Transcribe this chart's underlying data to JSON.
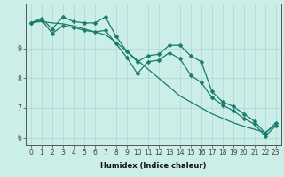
{
  "title": "",
  "xlabel": "Humidex (Indice chaleur)",
  "line_color": "#1a7a6e",
  "bg_color": "#cceee8",
  "grid_color": "#aad8d0",
  "x": [
    0,
    1,
    2,
    3,
    4,
    5,
    6,
    7,
    8,
    9,
    10,
    11,
    12,
    13,
    14,
    15,
    16,
    17,
    18,
    19,
    20,
    21,
    22,
    23
  ],
  "line1": [
    9.85,
    10.0,
    9.65,
    10.05,
    9.9,
    9.85,
    9.85,
    10.05,
    9.4,
    8.9,
    8.55,
    8.75,
    8.8,
    9.1,
    9.1,
    8.75,
    8.55,
    7.55,
    7.2,
    7.05,
    6.8,
    6.55,
    6.15,
    6.5
  ],
  "line2": [
    9.85,
    9.95,
    9.5,
    9.75,
    9.7,
    9.6,
    9.55,
    9.6,
    9.15,
    8.7,
    8.15,
    8.55,
    8.6,
    8.85,
    8.65,
    8.1,
    7.85,
    7.35,
    7.1,
    6.9,
    6.65,
    6.45,
    6.05,
    6.4
  ],
  "line3": [
    9.85,
    9.9,
    9.85,
    9.82,
    9.75,
    9.65,
    9.55,
    9.45,
    9.2,
    8.9,
    8.6,
    8.3,
    8.0,
    7.7,
    7.4,
    7.2,
    7.0,
    6.8,
    6.65,
    6.5,
    6.38,
    6.28,
    6.18,
    6.42
  ],
  "xlim": [
    -0.5,
    23.5
  ],
  "ylim": [
    5.75,
    10.5
  ],
  "yticks": [
    6,
    7,
    8,
    9
  ],
  "xticks": [
    0,
    1,
    2,
    3,
    4,
    5,
    6,
    7,
    8,
    9,
    10,
    11,
    12,
    13,
    14,
    15,
    16,
    17,
    18,
    19,
    20,
    21,
    22,
    23
  ],
  "markersize": 2.5,
  "linewidth": 0.9,
  "tick_fontsize": 5.5,
  "xlabel_fontsize": 6.0
}
